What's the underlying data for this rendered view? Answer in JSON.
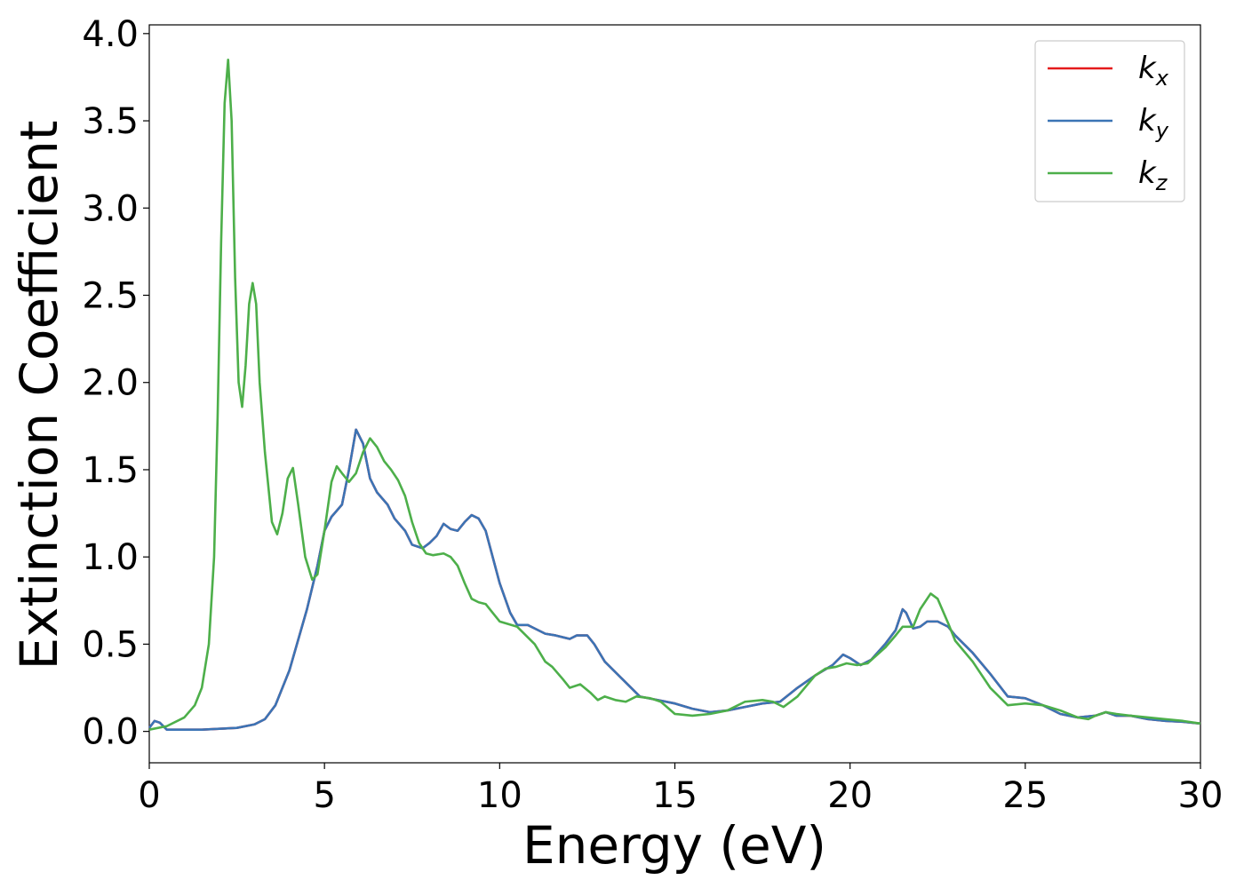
{
  "chart_data": {
    "type": "line",
    "xlabel": "Energy (eV)",
    "ylabel": "Extinction Coefficient",
    "xlim": [
      0,
      30
    ],
    "ylim": [
      -0.18,
      4.05
    ],
    "xticks": [
      "0",
      "5",
      "10",
      "15",
      "20",
      "25",
      "30"
    ],
    "yticks": [
      "0.0",
      "0.5",
      "1.0",
      "1.5",
      "2.0",
      "2.5",
      "3.0",
      "3.5",
      "4.0"
    ],
    "grid": false,
    "legend_position": "top-right",
    "series": [
      {
        "name": "k_x",
        "label_base": "k",
        "label_sub": "x",
        "color": "#e41a1c",
        "points": [
          [
            0,
            0.02
          ],
          [
            0.15,
            0.06
          ],
          [
            0.3,
            0.05
          ],
          [
            0.5,
            0.01
          ],
          [
            1.0,
            0.01
          ],
          [
            1.5,
            0.01
          ],
          [
            2.0,
            0.015
          ],
          [
            2.5,
            0.02
          ],
          [
            3.0,
            0.04
          ],
          [
            3.3,
            0.07
          ],
          [
            3.6,
            0.15
          ],
          [
            4.0,
            0.35
          ],
          [
            4.5,
            0.7
          ],
          [
            4.8,
            0.95
          ],
          [
            5.0,
            1.15
          ],
          [
            5.2,
            1.23
          ],
          [
            5.5,
            1.3
          ],
          [
            5.7,
            1.5
          ],
          [
            5.9,
            1.73
          ],
          [
            6.1,
            1.65
          ],
          [
            6.3,
            1.45
          ],
          [
            6.5,
            1.37
          ],
          [
            6.8,
            1.3
          ],
          [
            7.0,
            1.22
          ],
          [
            7.3,
            1.15
          ],
          [
            7.5,
            1.07
          ],
          [
            7.8,
            1.05
          ],
          [
            8.0,
            1.08
          ],
          [
            8.2,
            1.12
          ],
          [
            8.4,
            1.19
          ],
          [
            8.6,
            1.16
          ],
          [
            8.8,
            1.15
          ],
          [
            9.0,
            1.2
          ],
          [
            9.2,
            1.24
          ],
          [
            9.4,
            1.22
          ],
          [
            9.6,
            1.15
          ],
          [
            9.8,
            1.0
          ],
          [
            10.0,
            0.85
          ],
          [
            10.3,
            0.68
          ],
          [
            10.5,
            0.61
          ],
          [
            10.8,
            0.61
          ],
          [
            11.0,
            0.59
          ],
          [
            11.3,
            0.56
          ],
          [
            11.6,
            0.55
          ],
          [
            12.0,
            0.53
          ],
          [
            12.2,
            0.55
          ],
          [
            12.5,
            0.55
          ],
          [
            12.7,
            0.5
          ],
          [
            13.0,
            0.4
          ],
          [
            13.5,
            0.3
          ],
          [
            14.0,
            0.2
          ],
          [
            14.5,
            0.18
          ],
          [
            15.0,
            0.16
          ],
          [
            15.5,
            0.13
          ],
          [
            16.0,
            0.11
          ],
          [
            16.5,
            0.12
          ],
          [
            17.0,
            0.14
          ],
          [
            17.5,
            0.16
          ],
          [
            18.0,
            0.17
          ],
          [
            18.5,
            0.25
          ],
          [
            19.0,
            0.32
          ],
          [
            19.5,
            0.38
          ],
          [
            19.8,
            0.44
          ],
          [
            20.0,
            0.42
          ],
          [
            20.3,
            0.38
          ],
          [
            20.6,
            0.41
          ],
          [
            21.0,
            0.5
          ],
          [
            21.3,
            0.58
          ],
          [
            21.5,
            0.7
          ],
          [
            21.6,
            0.68
          ],
          [
            21.8,
            0.59
          ],
          [
            22.0,
            0.6
          ],
          [
            22.2,
            0.63
          ],
          [
            22.5,
            0.63
          ],
          [
            22.8,
            0.6
          ],
          [
            23.0,
            0.55
          ],
          [
            23.5,
            0.45
          ],
          [
            24.0,
            0.33
          ],
          [
            24.5,
            0.2
          ],
          [
            25.0,
            0.19
          ],
          [
            25.5,
            0.15
          ],
          [
            26.0,
            0.1
          ],
          [
            26.5,
            0.08
          ],
          [
            27.0,
            0.09
          ],
          [
            27.3,
            0.11
          ],
          [
            27.6,
            0.09
          ],
          [
            28.0,
            0.09
          ],
          [
            28.5,
            0.07
          ],
          [
            29.0,
            0.06
          ],
          [
            29.5,
            0.055
          ],
          [
            30,
            0.045
          ]
        ]
      },
      {
        "name": "k_y",
        "label_base": "k",
        "label_sub": "y",
        "color": "#3b74b5",
        "points": [
          [
            0,
            0.02
          ],
          [
            0.15,
            0.06
          ],
          [
            0.3,
            0.05
          ],
          [
            0.5,
            0.01
          ],
          [
            1.0,
            0.01
          ],
          [
            1.5,
            0.01
          ],
          [
            2.0,
            0.015
          ],
          [
            2.5,
            0.02
          ],
          [
            3.0,
            0.04
          ],
          [
            3.3,
            0.07
          ],
          [
            3.6,
            0.15
          ],
          [
            4.0,
            0.35
          ],
          [
            4.5,
            0.7
          ],
          [
            4.8,
            0.95
          ],
          [
            5.0,
            1.15
          ],
          [
            5.2,
            1.23
          ],
          [
            5.5,
            1.3
          ],
          [
            5.7,
            1.5
          ],
          [
            5.9,
            1.73
          ],
          [
            6.1,
            1.65
          ],
          [
            6.3,
            1.45
          ],
          [
            6.5,
            1.37
          ],
          [
            6.8,
            1.3
          ],
          [
            7.0,
            1.22
          ],
          [
            7.3,
            1.15
          ],
          [
            7.5,
            1.07
          ],
          [
            7.8,
            1.05
          ],
          [
            8.0,
            1.08
          ],
          [
            8.2,
            1.12
          ],
          [
            8.4,
            1.19
          ],
          [
            8.6,
            1.16
          ],
          [
            8.8,
            1.15
          ],
          [
            9.0,
            1.2
          ],
          [
            9.2,
            1.24
          ],
          [
            9.4,
            1.22
          ],
          [
            9.6,
            1.15
          ],
          [
            9.8,
            1.0
          ],
          [
            10.0,
            0.85
          ],
          [
            10.3,
            0.68
          ],
          [
            10.5,
            0.61
          ],
          [
            10.8,
            0.61
          ],
          [
            11.0,
            0.59
          ],
          [
            11.3,
            0.56
          ],
          [
            11.6,
            0.55
          ],
          [
            12.0,
            0.53
          ],
          [
            12.2,
            0.55
          ],
          [
            12.5,
            0.55
          ],
          [
            12.7,
            0.5
          ],
          [
            13.0,
            0.4
          ],
          [
            13.5,
            0.3
          ],
          [
            14.0,
            0.2
          ],
          [
            14.5,
            0.18
          ],
          [
            15.0,
            0.16
          ],
          [
            15.5,
            0.13
          ],
          [
            16.0,
            0.11
          ],
          [
            16.5,
            0.12
          ],
          [
            17.0,
            0.14
          ],
          [
            17.5,
            0.16
          ],
          [
            18.0,
            0.17
          ],
          [
            18.5,
            0.25
          ],
          [
            19.0,
            0.32
          ],
          [
            19.5,
            0.38
          ],
          [
            19.8,
            0.44
          ],
          [
            20.0,
            0.42
          ],
          [
            20.3,
            0.38
          ],
          [
            20.6,
            0.41
          ],
          [
            21.0,
            0.5
          ],
          [
            21.3,
            0.58
          ],
          [
            21.5,
            0.7
          ],
          [
            21.6,
            0.68
          ],
          [
            21.8,
            0.59
          ],
          [
            22.0,
            0.6
          ],
          [
            22.2,
            0.63
          ],
          [
            22.5,
            0.63
          ],
          [
            22.8,
            0.6
          ],
          [
            23.0,
            0.55
          ],
          [
            23.5,
            0.45
          ],
          [
            24.0,
            0.33
          ],
          [
            24.5,
            0.2
          ],
          [
            25.0,
            0.19
          ],
          [
            25.5,
            0.15
          ],
          [
            26.0,
            0.1
          ],
          [
            26.5,
            0.08
          ],
          [
            27.0,
            0.09
          ],
          [
            27.3,
            0.11
          ],
          [
            27.6,
            0.09
          ],
          [
            28.0,
            0.09
          ],
          [
            28.5,
            0.07
          ],
          [
            29.0,
            0.06
          ],
          [
            29.5,
            0.055
          ],
          [
            30,
            0.045
          ]
        ]
      },
      {
        "name": "k_z",
        "label_base": "k",
        "label_sub": "z",
        "color": "#4daf4a",
        "points": [
          [
            0,
            0.01
          ],
          [
            0.5,
            0.03
          ],
          [
            1.0,
            0.08
          ],
          [
            1.3,
            0.15
          ],
          [
            1.5,
            0.25
          ],
          [
            1.7,
            0.5
          ],
          [
            1.85,
            1.0
          ],
          [
            1.95,
            1.8
          ],
          [
            2.05,
            2.8
          ],
          [
            2.15,
            3.6
          ],
          [
            2.25,
            3.85
          ],
          [
            2.35,
            3.5
          ],
          [
            2.45,
            2.6
          ],
          [
            2.55,
            2.0
          ],
          [
            2.65,
            1.86
          ],
          [
            2.75,
            2.1
          ],
          [
            2.85,
            2.45
          ],
          [
            2.95,
            2.57
          ],
          [
            3.05,
            2.45
          ],
          [
            3.15,
            2.0
          ],
          [
            3.3,
            1.6
          ],
          [
            3.5,
            1.2
          ],
          [
            3.65,
            1.13
          ],
          [
            3.8,
            1.25
          ],
          [
            3.95,
            1.45
          ],
          [
            4.1,
            1.51
          ],
          [
            4.25,
            1.3
          ],
          [
            4.45,
            1.0
          ],
          [
            4.65,
            0.87
          ],
          [
            4.8,
            0.9
          ],
          [
            5.0,
            1.15
          ],
          [
            5.2,
            1.43
          ],
          [
            5.35,
            1.52
          ],
          [
            5.5,
            1.48
          ],
          [
            5.7,
            1.43
          ],
          [
            5.9,
            1.48
          ],
          [
            6.1,
            1.6
          ],
          [
            6.3,
            1.68
          ],
          [
            6.5,
            1.63
          ],
          [
            6.7,
            1.55
          ],
          [
            6.9,
            1.5
          ],
          [
            7.1,
            1.44
          ],
          [
            7.3,
            1.35
          ],
          [
            7.5,
            1.2
          ],
          [
            7.7,
            1.08
          ],
          [
            7.9,
            1.02
          ],
          [
            8.1,
            1.01
          ],
          [
            8.4,
            1.02
          ],
          [
            8.6,
            1.0
          ],
          [
            8.8,
            0.95
          ],
          [
            9.0,
            0.85
          ],
          [
            9.2,
            0.76
          ],
          [
            9.4,
            0.74
          ],
          [
            9.6,
            0.73
          ],
          [
            9.8,
            0.68
          ],
          [
            10.0,
            0.63
          ],
          [
            10.5,
            0.6
          ],
          [
            11.0,
            0.5
          ],
          [
            11.3,
            0.4
          ],
          [
            11.5,
            0.37
          ],
          [
            11.8,
            0.3
          ],
          [
            12.0,
            0.25
          ],
          [
            12.3,
            0.27
          ],
          [
            12.6,
            0.22
          ],
          [
            12.8,
            0.18
          ],
          [
            13.0,
            0.2
          ],
          [
            13.3,
            0.18
          ],
          [
            13.6,
            0.17
          ],
          [
            13.9,
            0.2
          ],
          [
            14.3,
            0.19
          ],
          [
            14.6,
            0.17
          ],
          [
            15.0,
            0.1
          ],
          [
            15.5,
            0.09
          ],
          [
            16.0,
            0.1
          ],
          [
            16.5,
            0.12
          ],
          [
            17.0,
            0.17
          ],
          [
            17.5,
            0.18
          ],
          [
            17.8,
            0.17
          ],
          [
            18.1,
            0.14
          ],
          [
            18.5,
            0.2
          ],
          [
            19.0,
            0.32
          ],
          [
            19.3,
            0.36
          ],
          [
            19.6,
            0.37
          ],
          [
            19.9,
            0.39
          ],
          [
            20.2,
            0.38
          ],
          [
            20.5,
            0.39
          ],
          [
            21.0,
            0.48
          ],
          [
            21.3,
            0.55
          ],
          [
            21.5,
            0.6
          ],
          [
            21.8,
            0.6
          ],
          [
            22.0,
            0.7
          ],
          [
            22.3,
            0.79
          ],
          [
            22.5,
            0.76
          ],
          [
            22.8,
            0.62
          ],
          [
            23.0,
            0.52
          ],
          [
            23.5,
            0.4
          ],
          [
            24.0,
            0.25
          ],
          [
            24.5,
            0.15
          ],
          [
            25.0,
            0.16
          ],
          [
            25.5,
            0.15
          ],
          [
            26.0,
            0.12
          ],
          [
            26.5,
            0.08
          ],
          [
            26.8,
            0.07
          ],
          [
            27.0,
            0.09
          ],
          [
            27.3,
            0.11
          ],
          [
            27.6,
            0.1
          ],
          [
            28.0,
            0.09
          ],
          [
            28.5,
            0.08
          ],
          [
            29.0,
            0.07
          ],
          [
            29.5,
            0.06
          ],
          [
            30,
            0.045
          ]
        ]
      }
    ]
  }
}
